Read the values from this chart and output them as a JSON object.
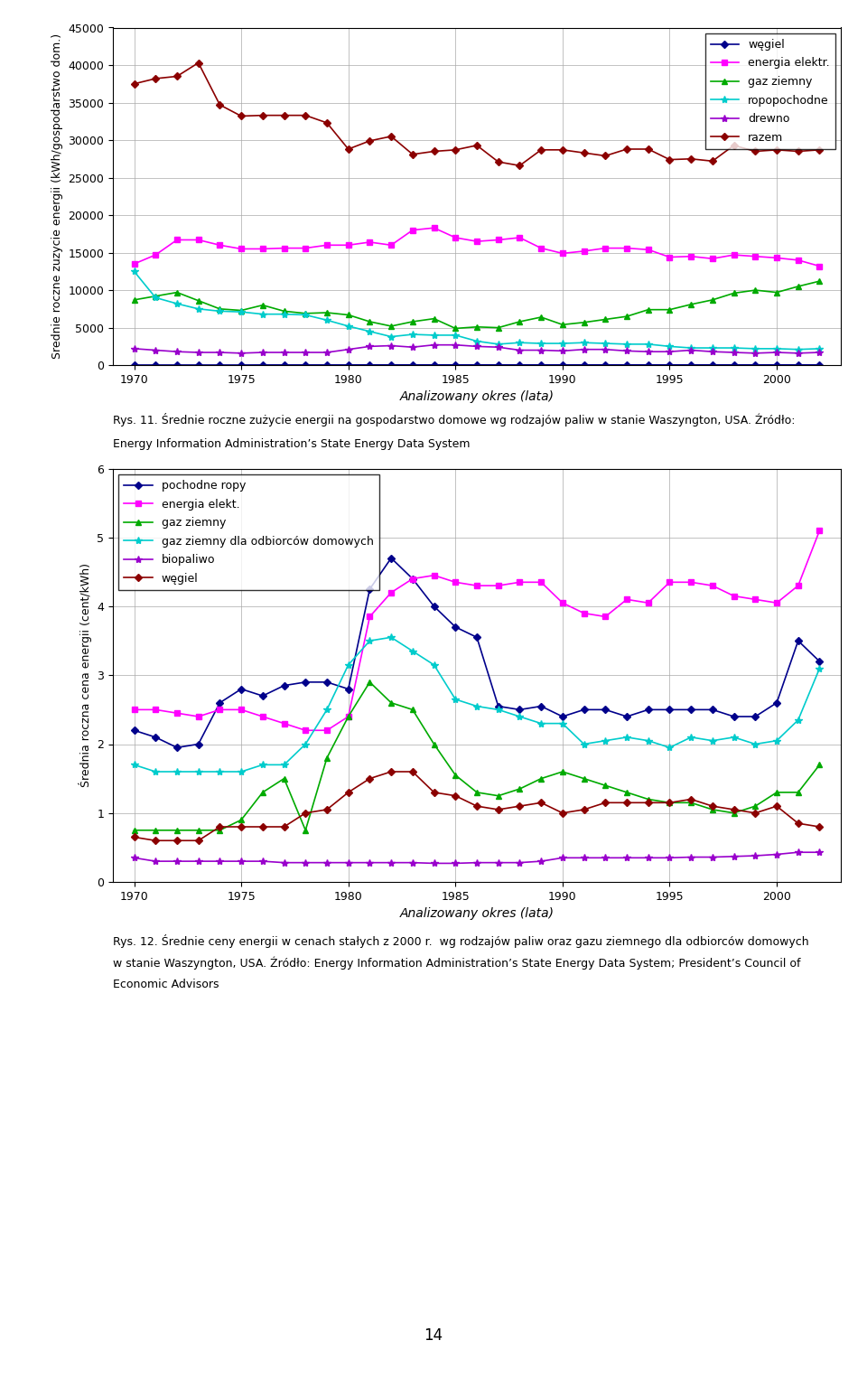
{
  "years": [
    1970,
    1971,
    1972,
    1973,
    1974,
    1975,
    1976,
    1977,
    1978,
    1979,
    1980,
    1981,
    1982,
    1983,
    1984,
    1985,
    1986,
    1987,
    1988,
    1989,
    1990,
    1991,
    1992,
    1993,
    1994,
    1995,
    1996,
    1997,
    1998,
    1999,
    2000,
    2001,
    2002
  ],
  "chart1": {
    "ylabel": "Srednie roczne zuzycie energii (kWh/gospodarstwo dom.)",
    "xlabel": "Analizowany okres (lata)",
    "ylim": [
      0,
      45000
    ],
    "yticks": [
      0,
      5000,
      10000,
      15000,
      20000,
      25000,
      30000,
      35000,
      40000,
      45000
    ],
    "caption_line1": "Rys. 11. Średnie roczne zużycie energii na gospodarstwo domowe wg rodzajów paliw w stanie Waszyngton, USA. Źródło:",
    "caption_line2": "Energy Information Administration’s State Energy Data System",
    "series": {
      "węgiel": {
        "color": "#00008B",
        "marker": "D",
        "markersize": 4,
        "values": [
          20,
          20,
          20,
          20,
          20,
          20,
          30,
          30,
          30,
          30,
          30,
          40,
          40,
          40,
          40,
          40,
          40,
          40,
          40,
          40,
          40,
          40,
          40,
          40,
          40,
          40,
          40,
          40,
          40,
          40,
          40,
          40,
          40
        ]
      },
      "energia elektr.": {
        "color": "#FF00FF",
        "marker": "s",
        "markersize": 5,
        "values": [
          13500,
          14700,
          16700,
          16700,
          16000,
          15500,
          15500,
          15600,
          15600,
          16000,
          16000,
          16400,
          16000,
          18000,
          18300,
          17000,
          16500,
          16700,
          17000,
          15600,
          14900,
          15200,
          15600,
          15600,
          15400,
          14400,
          14500,
          14200,
          14700,
          14500,
          14300,
          14000,
          13200
        ]
      },
      "gaz ziemny": {
        "color": "#00AA00",
        "marker": "^",
        "markersize": 5,
        "values": [
          8700,
          9200,
          9700,
          8600,
          7500,
          7300,
          8000,
          7200,
          6900,
          7000,
          6700,
          5800,
          5200,
          5800,
          6200,
          4900,
          5100,
          5000,
          5800,
          6400,
          5400,
          5700,
          6100,
          6500,
          7400,
          7400,
          8100,
          8700,
          9600,
          10000,
          9700,
          10500,
          11200
        ]
      },
      "ropopochodne": {
        "color": "#00CCCC",
        "marker": "*",
        "markersize": 6,
        "values": [
          12500,
          9000,
          8200,
          7500,
          7200,
          7100,
          6800,
          6800,
          6700,
          6000,
          5200,
          4500,
          3800,
          4100,
          4000,
          4000,
          3200,
          2800,
          3000,
          2900,
          2900,
          3000,
          2900,
          2800,
          2800,
          2500,
          2300,
          2300,
          2300,
          2200,
          2200,
          2100,
          2200
        ]
      },
      "drewno": {
        "color": "#9900CC",
        "marker": "*",
        "markersize": 6,
        "values": [
          2200,
          2000,
          1800,
          1700,
          1700,
          1600,
          1700,
          1700,
          1700,
          1700,
          2100,
          2500,
          2600,
          2400,
          2700,
          2700,
          2500,
          2400,
          2000,
          2000,
          1900,
          2100,
          2100,
          1900,
          1800,
          1800,
          2000,
          1800,
          1700,
          1600,
          1700,
          1600,
          1700
        ]
      },
      "razem": {
        "color": "#8B0000",
        "marker": "D",
        "markersize": 4,
        "values": [
          37500,
          38200,
          38500,
          40300,
          34700,
          33200,
          33300,
          33300,
          33300,
          32300,
          28800,
          29900,
          30500,
          28100,
          28500,
          28700,
          29300,
          27100,
          26600,
          28700,
          28700,
          28300,
          27900,
          28800,
          28800,
          27400,
          27500,
          27200,
          29300,
          28500,
          28700,
          28500,
          28700
        ]
      }
    }
  },
  "chart2": {
    "ylabel": "Średnia roczna cena energii (cent/kWh)",
    "xlabel": "Analizowany okres (lata)",
    "ylim": [
      0,
      6
    ],
    "yticks": [
      0,
      1,
      2,
      3,
      4,
      5,
      6
    ],
    "caption_line1": "Rys. 12. Średnie ceny energii w cenach stałych z 2000 r.  wg rodzajów paliw oraz gazu ziemnego dla odbiorców domowych",
    "caption_line2": "w stanie Waszyngton, USA. Źródło: Energy Information Administration’s State Energy Data System; President’s Council of",
    "caption_line3": "Economic Advisors",
    "series": {
      "pochodne ropy": {
        "color": "#00008B",
        "marker": "D",
        "markersize": 4,
        "values": [
          2.2,
          2.1,
          1.95,
          2.0,
          2.6,
          2.8,
          2.7,
          2.85,
          2.9,
          2.9,
          2.8,
          4.25,
          4.7,
          4.4,
          4.0,
          3.7,
          3.55,
          2.55,
          2.5,
          2.55,
          2.4,
          2.5,
          2.5,
          2.4,
          2.5,
          2.5,
          2.5,
          2.5,
          2.4,
          2.4,
          2.6,
          3.5,
          3.2
        ]
      },
      "energia elekt.": {
        "color": "#FF00FF",
        "marker": "s",
        "markersize": 5,
        "values": [
          2.5,
          2.5,
          2.45,
          2.4,
          2.5,
          2.5,
          2.4,
          2.3,
          2.2,
          2.2,
          2.4,
          3.85,
          4.2,
          4.4,
          4.45,
          4.35,
          4.3,
          4.3,
          4.35,
          4.35,
          4.05,
          3.9,
          3.85,
          4.1,
          4.05,
          4.35,
          4.35,
          4.3,
          4.15,
          4.1,
          4.05,
          4.3,
          5.1
        ]
      },
      "gaz ziemny": {
        "color": "#00AA00",
        "marker": "^",
        "markersize": 5,
        "values": [
          0.75,
          0.75,
          0.75,
          0.75,
          0.75,
          0.9,
          1.3,
          1.5,
          0.75,
          1.8,
          2.4,
          2.9,
          2.6,
          2.5,
          2.0,
          1.55,
          1.3,
          1.25,
          1.35,
          1.5,
          1.6,
          1.5,
          1.4,
          1.3,
          1.2,
          1.15,
          1.15,
          1.05,
          1.0,
          1.1,
          1.3,
          1.3,
          1.7
        ]
      },
      "gaz ziemny dla odbiorców domowych": {
        "color": "#00CCCC",
        "marker": "*",
        "markersize": 6,
        "values": [
          1.7,
          1.6,
          1.6,
          1.6,
          1.6,
          1.6,
          1.7,
          1.7,
          2.0,
          2.5,
          3.15,
          3.5,
          3.55,
          3.35,
          3.15,
          2.65,
          2.55,
          2.5,
          2.4,
          2.3,
          2.3,
          2.0,
          2.05,
          2.1,
          2.05,
          1.95,
          2.1,
          2.05,
          2.1,
          2.0,
          2.05,
          2.35,
          3.1
        ]
      },
      "biopaliwo": {
        "color": "#9900CC",
        "marker": "*",
        "markersize": 6,
        "values": [
          0.35,
          0.3,
          0.3,
          0.3,
          0.3,
          0.3,
          0.3,
          0.28,
          0.28,
          0.28,
          0.28,
          0.28,
          0.28,
          0.28,
          0.27,
          0.27,
          0.28,
          0.28,
          0.28,
          0.3,
          0.35,
          0.35,
          0.35,
          0.35,
          0.35,
          0.35,
          0.36,
          0.36,
          0.37,
          0.38,
          0.4,
          0.43,
          0.43
        ]
      },
      "węgiel": {
        "color": "#8B0000",
        "marker": "D",
        "markersize": 4,
        "values": [
          0.65,
          0.6,
          0.6,
          0.6,
          0.8,
          0.8,
          0.8,
          0.8,
          1.0,
          1.05,
          1.3,
          1.5,
          1.6,
          1.6,
          1.3,
          1.25,
          1.1,
          1.05,
          1.1,
          1.15,
          1.0,
          1.05,
          1.15,
          1.15,
          1.15,
          1.15,
          1.2,
          1.1,
          1.05,
          1.0,
          1.1,
          0.85,
          0.8
        ]
      }
    }
  },
  "page_number": "14",
  "bg_color": "#ffffff"
}
